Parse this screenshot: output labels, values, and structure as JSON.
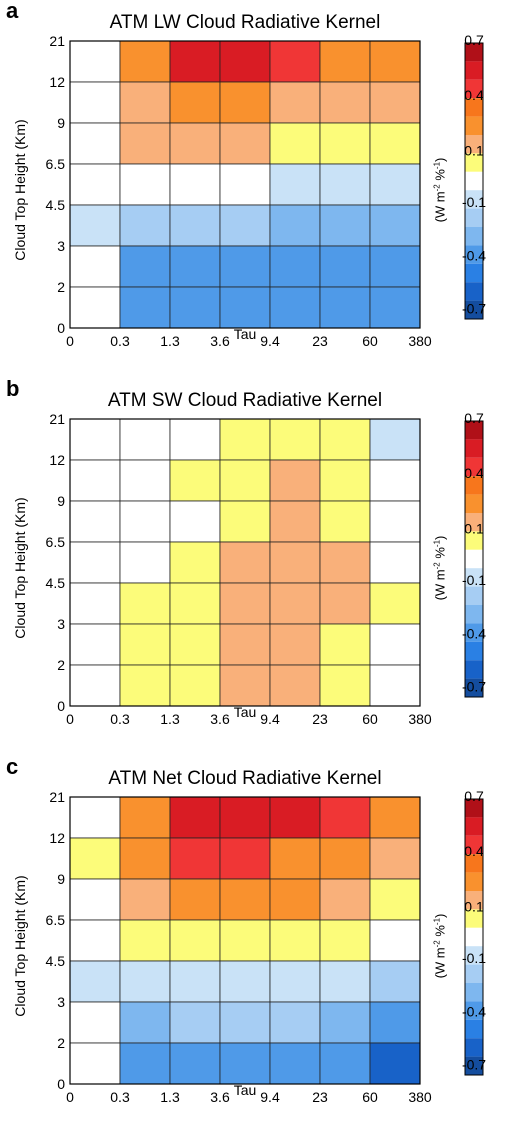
{
  "colorbar": {
    "ticks": [
      "0.7",
      "0.4",
      "0.1",
      "-0.1",
      "-0.4",
      "-0.7"
    ],
    "label_main": "(W m",
    "label_sup1": "-2",
    "label_mid": " %",
    "label_sup2": "-1",
    "label_end": ")",
    "colors": [
      "#b01018",
      "#d91c24",
      "#f03636",
      "#f7761c",
      "#f9912e",
      "#f9b07a",
      "#fcfc7a",
      "#ffffff",
      "#c9e2f7",
      "#a6cdf3",
      "#7eb7ef",
      "#4f9ae8",
      "#2a80e4",
      "#1862c8",
      "#144d9e"
    ]
  },
  "chart_data": [
    {
      "type": "heatmap",
      "panel_letter": "a",
      "title": "ATM LW Cloud Radiative Kernel",
      "xlabel": "Tau",
      "ylabel": "Cloud Top Height (Km)",
      "x_ticks": [
        "0",
        "0.3",
        "1.3",
        "3.6",
        "9.4",
        "23",
        "60",
        "380"
      ],
      "y_ticks": [
        "0",
        "2",
        "3",
        "4.5",
        "6.5",
        "9",
        "12",
        "21"
      ],
      "values_top_to_bottom": [
        [
          0,
          0.35,
          0.55,
          0.55,
          0.45,
          0.35,
          0.35
        ],
        [
          0,
          0.25,
          0.35,
          0.35,
          0.25,
          0.25,
          0.25
        ],
        [
          0,
          0.15,
          0.15,
          0.15,
          0.05,
          0.05,
          0.05
        ],
        [
          0,
          0,
          0,
          0,
          -0.05,
          -0.05,
          -0.05
        ],
        [
          -0.05,
          -0.15,
          -0.15,
          -0.15,
          -0.25,
          -0.25,
          -0.25
        ],
        [
          0,
          -0.35,
          -0.35,
          -0.35,
          -0.35,
          -0.35,
          -0.35
        ],
        [
          0,
          -0.35,
          -0.35,
          -0.35,
          -0.45,
          -0.45,
          -0.45
        ]
      ]
    },
    {
      "type": "heatmap",
      "panel_letter": "b",
      "title": "ATM SW Cloud Radiative Kernel",
      "xlabel": "Tau",
      "ylabel": "Cloud Top Height (Km)",
      "x_ticks": [
        "0",
        "0.3",
        "1.3",
        "3.6",
        "9.4",
        "23",
        "60",
        "380"
      ],
      "y_ticks": [
        "0",
        "2",
        "3",
        "4.5",
        "6.5",
        "9",
        "12",
        "21"
      ],
      "values_top_to_bottom": [
        [
          0,
          0,
          0,
          0.05,
          0.05,
          0.05,
          -0.05
        ],
        [
          0,
          0,
          0.05,
          0.05,
          0.15,
          0.05,
          0
        ],
        [
          0,
          0,
          0,
          0.05,
          0.15,
          0.05,
          0
        ],
        [
          0,
          0,
          0.05,
          0.15,
          0.15,
          0.15,
          0
        ],
        [
          0,
          0.05,
          0.05,
          0.15,
          0.15,
          0.15,
          0.05
        ],
        [
          0,
          0.05,
          0.05,
          0.15,
          0.15,
          0.05,
          0
        ],
        [
          0,
          0.05,
          0.05,
          0.15,
          0.15,
          0.05,
          0
        ]
      ]
    },
    {
      "type": "heatmap",
      "panel_letter": "c",
      "title": "ATM Net Cloud Radiative Kernel",
      "xlabel": "Tau",
      "ylabel": "Cloud Top Height (Km)",
      "x_ticks": [
        "0",
        "0.3",
        "1.3",
        "3.6",
        "9.4",
        "23",
        "60",
        "380"
      ],
      "y_ticks": [
        "0",
        "2",
        "3",
        "4.5",
        "6.5",
        "9",
        "12",
        "21"
      ],
      "values_top_to_bottom": [
        [
          0,
          0.35,
          0.55,
          0.55,
          0.55,
          0.45,
          0.35
        ],
        [
          0.05,
          0.35,
          0.45,
          0.45,
          0.35,
          0.35,
          0.25
        ],
        [
          0,
          0.25,
          0.35,
          0.35,
          0.35,
          0.25,
          0.05
        ],
        [
          0,
          0.05,
          0.05,
          0.05,
          0.05,
          0.05,
          0
        ],
        [
          -0.05,
          -0.05,
          -0.05,
          -0.05,
          -0.05,
          -0.05,
          -0.15
        ],
        [
          0,
          -0.25,
          -0.15,
          -0.15,
          -0.15,
          -0.25,
          -0.35
        ],
        [
          0,
          -0.35,
          -0.35,
          -0.35,
          -0.35,
          -0.35,
          -0.55
        ]
      ]
    }
  ]
}
